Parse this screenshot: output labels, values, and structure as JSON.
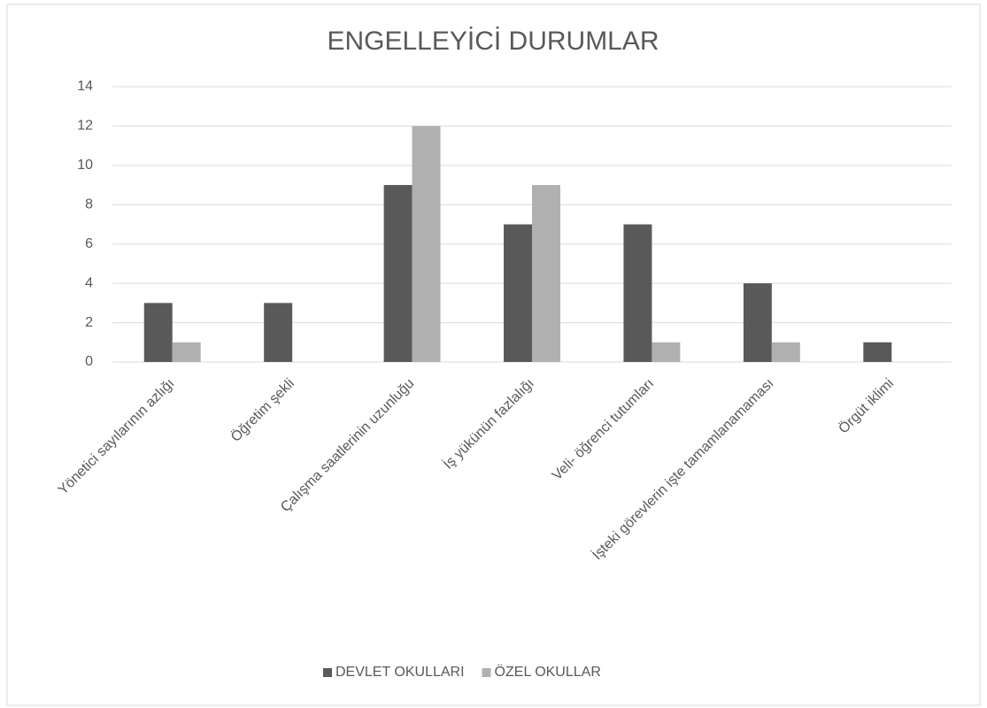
{
  "chart_data": {
    "type": "bar",
    "title": "ENGELLEYİCİ DURUMLAR",
    "categories": [
      "Yönetici sayılarının azlığı",
      "Öğretim şekli",
      "Çalışma saatlerinin uzunluğu",
      "İş yükünün fazlalığı",
      "Veli- öğrenci tutumları",
      "İşteki görevlerin işte tamamlanamaması",
      "Örgüt iklimi"
    ],
    "series": [
      {
        "name": "DEVLET OKULLARI",
        "color": "#595959",
        "values": [
          3,
          3,
          9,
          7,
          7,
          4,
          1
        ]
      },
      {
        "name": "ÖZEL OKULLAR",
        "color": "#b0b0b0",
        "values": [
          1,
          0,
          12,
          9,
          1,
          1,
          0
        ]
      }
    ],
    "ylim": [
      0,
      14
    ],
    "yticks": [
      0,
      2,
      4,
      6,
      8,
      10,
      12,
      14
    ],
    "grid": true,
    "legend": "bottom"
  }
}
